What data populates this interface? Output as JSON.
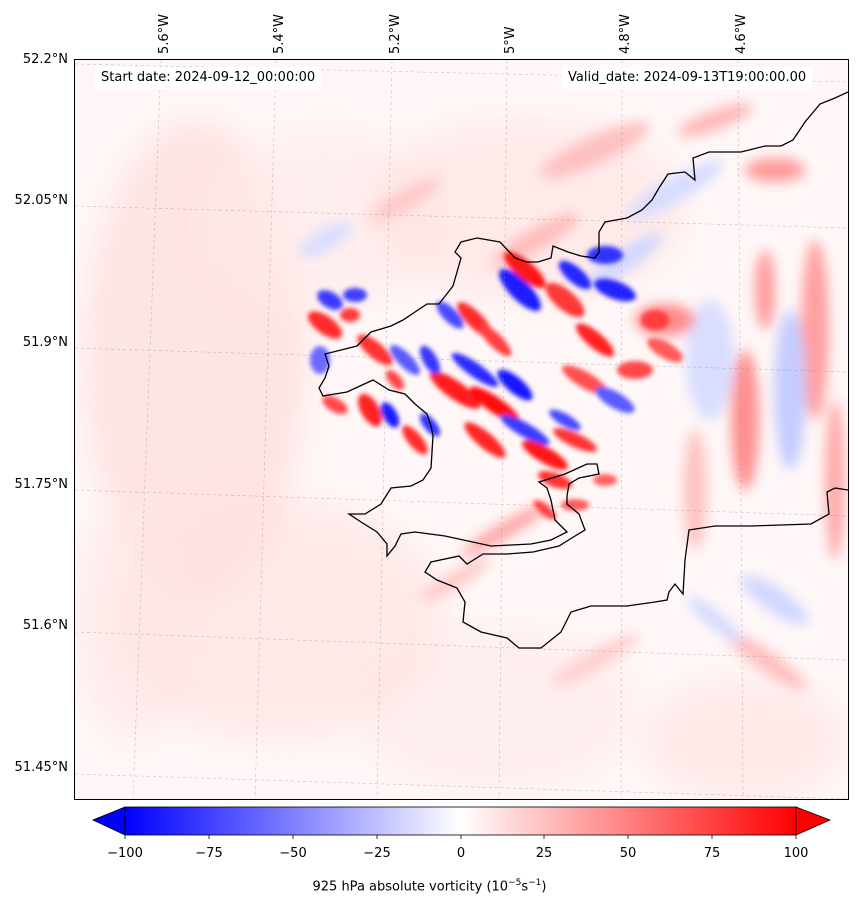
{
  "map": {
    "start_date": "Start date: 2024-09-12_00:00:00",
    "valid_date": "Valid_date: 2024-09-13T19:00:00.00",
    "lon_labels": [
      "5.6°W",
      "5.4°W",
      "5.2°W",
      "5°W",
      "4.8°W",
      "4.6°W"
    ],
    "lat_labels": [
      "52.2°N",
      "52.05°N",
      "51.9°N",
      "51.75°N",
      "51.6°N",
      "51.45°N"
    ],
    "colormap": "bwr",
    "coastline_color": "#000000",
    "gridlines": true
  },
  "colorbar": {
    "ticks": [
      "−100",
      "−75",
      "−50",
      "−25",
      "0",
      "25",
      "50",
      "75",
      "100"
    ],
    "label_prefix": "925 hPa absolute vorticity (10",
    "label_exp1": "−5",
    "label_mid": "s",
    "label_exp2": "−1",
    "label_suffix": ")",
    "min": -100,
    "max": 100,
    "extend": "both"
  }
}
